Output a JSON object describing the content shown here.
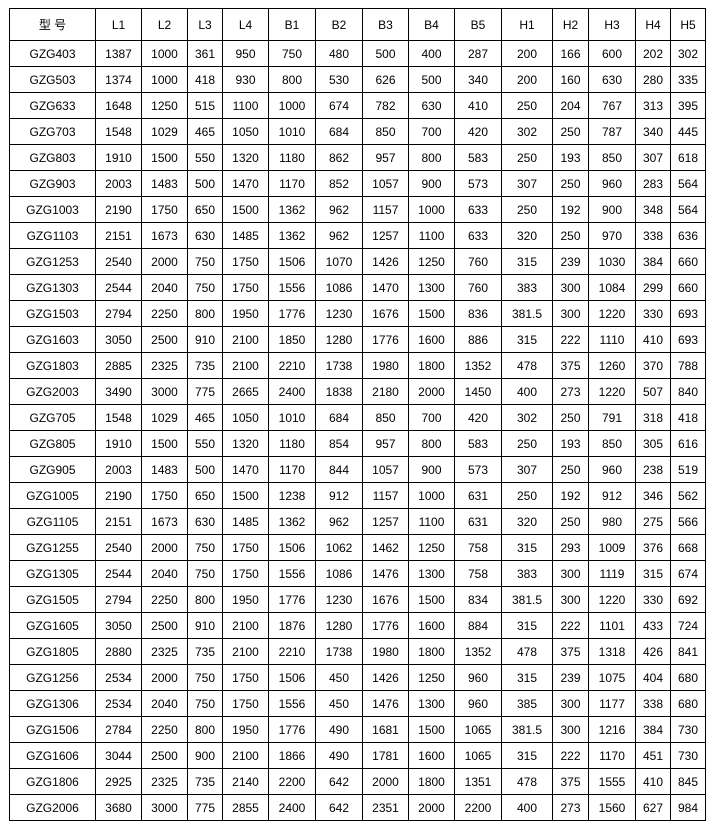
{
  "table": {
    "headers": [
      "型 号",
      "L1",
      "L2",
      "L3",
      "L4",
      "B1",
      "B2",
      "B3",
      "B4",
      "B5",
      "H1",
      "H2",
      "H3",
      "H4",
      "H5"
    ],
    "rows": [
      [
        "GZG403",
        "1387",
        "1000",
        "361",
        "950",
        "750",
        "480",
        "500",
        "400",
        "287",
        "200",
        "166",
        "600",
        "202",
        "302"
      ],
      [
        "GZG503",
        "1374",
        "1000",
        "418",
        "930",
        "800",
        "530",
        "626",
        "500",
        "340",
        "200",
        "160",
        "630",
        "280",
        "335"
      ],
      [
        "GZG633",
        "1648",
        "1250",
        "515",
        "1100",
        "1000",
        "674",
        "782",
        "630",
        "410",
        "250",
        "204",
        "767",
        "313",
        "395"
      ],
      [
        "GZG703",
        "1548",
        "1029",
        "465",
        "1050",
        "1010",
        "684",
        "850",
        "700",
        "420",
        "302",
        "250",
        "787",
        "340",
        "445"
      ],
      [
        "GZG803",
        "1910",
        "1500",
        "550",
        "1320",
        "1180",
        "862",
        "957",
        "800",
        "583",
        "250",
        "193",
        "850",
        "307",
        "618"
      ],
      [
        "GZG903",
        "2003",
        "1483",
        "500",
        "1470",
        "1170",
        "852",
        "1057",
        "900",
        "573",
        "307",
        "250",
        "960",
        "283",
        "564"
      ],
      [
        "GZG1003",
        "2190",
        "1750",
        "650",
        "1500",
        "1362",
        "962",
        "1157",
        "1000",
        "633",
        "250",
        "192",
        "900",
        "348",
        "564"
      ],
      [
        "GZG1103",
        "2151",
        "1673",
        "630",
        "1485",
        "1362",
        "962",
        "1257",
        "1100",
        "633",
        "320",
        "250",
        "970",
        "338",
        "636"
      ],
      [
        "GZG1253",
        "2540",
        "2000",
        "750",
        "1750",
        "1506",
        "1070",
        "1426",
        "1250",
        "760",
        "315",
        "239",
        "1030",
        "384",
        "660"
      ],
      [
        "GZG1303",
        "2544",
        "2040",
        "750",
        "1750",
        "1556",
        "1086",
        "1470",
        "1300",
        "760",
        "383",
        "300",
        "1084",
        "299",
        "660"
      ],
      [
        "GZG1503",
        "2794",
        "2250",
        "800",
        "1950",
        "1776",
        "1230",
        "1676",
        "1500",
        "836",
        "381.5",
        "300",
        "1220",
        "330",
        "693"
      ],
      [
        "GZG1603",
        "3050",
        "2500",
        "910",
        "2100",
        "1850",
        "1280",
        "1776",
        "1600",
        "886",
        "315",
        "222",
        "1110",
        "410",
        "693"
      ],
      [
        "GZG1803",
        "2885",
        "2325",
        "735",
        "2100",
        "2210",
        "1738",
        "1980",
        "1800",
        "1352",
        "478",
        "375",
        "1260",
        "370",
        "788"
      ],
      [
        "GZG2003",
        "3490",
        "3000",
        "775",
        "2665",
        "2400",
        "1838",
        "2180",
        "2000",
        "1450",
        "400",
        "273",
        "1220",
        "507",
        "840"
      ],
      [
        "GZG705",
        "1548",
        "1029",
        "465",
        "1050",
        "1010",
        "684",
        "850",
        "700",
        "420",
        "302",
        "250",
        "791",
        "318",
        "418"
      ],
      [
        "GZG805",
        "1910",
        "1500",
        "550",
        "1320",
        "1180",
        "854",
        "957",
        "800",
        "583",
        "250",
        "193",
        "850",
        "305",
        "616"
      ],
      [
        "GZG905",
        "2003",
        "1483",
        "500",
        "1470",
        "1170",
        "844",
        "1057",
        "900",
        "573",
        "307",
        "250",
        "960",
        "238",
        "519"
      ],
      [
        "GZG1005",
        "2190",
        "1750",
        "650",
        "1500",
        "1238",
        "912",
        "1157",
        "1000",
        "631",
        "250",
        "192",
        "912",
        "346",
        "562"
      ],
      [
        "GZG1105",
        "2151",
        "1673",
        "630",
        "1485",
        "1362",
        "962",
        "1257",
        "1100",
        "631",
        "320",
        "250",
        "980",
        "275",
        "566"
      ],
      [
        "GZG1255",
        "2540",
        "2000",
        "750",
        "1750",
        "1506",
        "1062",
        "1462",
        "1250",
        "758",
        "315",
        "293",
        "1009",
        "376",
        "668"
      ],
      [
        "GZG1305",
        "2544",
        "2040",
        "750",
        "1750",
        "1556",
        "1086",
        "1476",
        "1300",
        "758",
        "383",
        "300",
        "1119",
        "315",
        "674"
      ],
      [
        "GZG1505",
        "2794",
        "2250",
        "800",
        "1950",
        "1776",
        "1230",
        "1676",
        "1500",
        "834",
        "381.5",
        "300",
        "1220",
        "330",
        "692"
      ],
      [
        "GZG1605",
        "3050",
        "2500",
        "910",
        "2100",
        "1876",
        "1280",
        "1776",
        "1600",
        "884",
        "315",
        "222",
        "1101",
        "433",
        "724"
      ],
      [
        "GZG1805",
        "2880",
        "2325",
        "735",
        "2100",
        "2210",
        "1738",
        "1980",
        "1800",
        "1352",
        "478",
        "375",
        "1318",
        "426",
        "841"
      ],
      [
        "GZG1256",
        "2534",
        "2000",
        "750",
        "1750",
        "1506",
        "450",
        "1426",
        "1250",
        "960",
        "315",
        "239",
        "1075",
        "404",
        "680"
      ],
      [
        "GZG1306",
        "2534",
        "2040",
        "750",
        "1750",
        "1556",
        "450",
        "1476",
        "1300",
        "960",
        "385",
        "300",
        "1177",
        "338",
        "680"
      ],
      [
        "GZG1506",
        "2784",
        "2250",
        "800",
        "1950",
        "1776",
        "490",
        "1681",
        "1500",
        "1065",
        "381.5",
        "300",
        "1216",
        "384",
        "730"
      ],
      [
        "GZG1606",
        "3044",
        "2500",
        "900",
        "2100",
        "1866",
        "490",
        "1781",
        "1600",
        "1065",
        "315",
        "222",
        "1170",
        "451",
        "730"
      ],
      [
        "GZG1806",
        "2925",
        "2325",
        "735",
        "2140",
        "2200",
        "642",
        "2000",
        "1800",
        "1351",
        "478",
        "375",
        "1555",
        "410",
        "845"
      ],
      [
        "GZG2006",
        "3680",
        "3000",
        "775",
        "2855",
        "2400",
        "642",
        "2351",
        "2000",
        "2200",
        "400",
        "273",
        "1560",
        "627",
        "984"
      ]
    ]
  }
}
